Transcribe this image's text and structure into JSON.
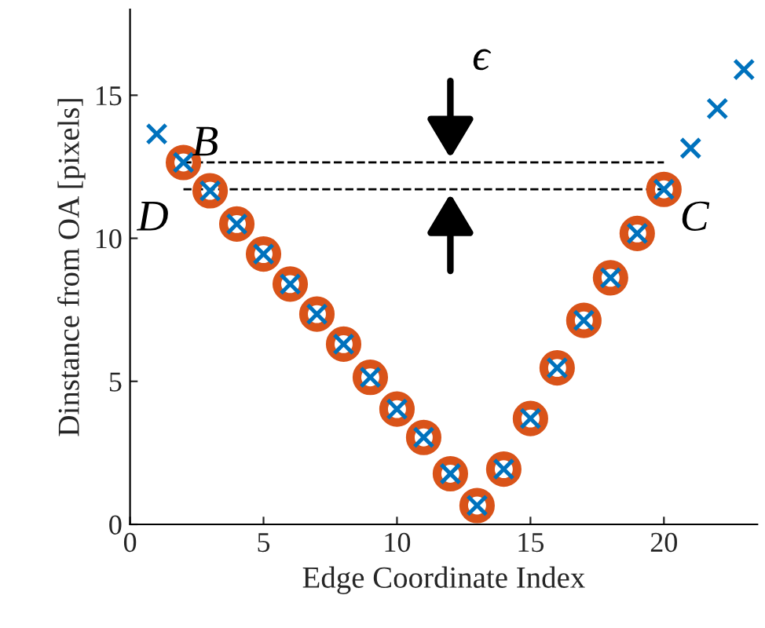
{
  "chart_data": {
    "type": "scatter",
    "xlabel": "Edge Coordinate Index",
    "ylabel": "Dinstance from OA [pixels]",
    "xlim": [
      0,
      23.5
    ],
    "ylim": [
      0,
      18
    ],
    "xticks": [
      0,
      5,
      10,
      15,
      20
    ],
    "yticks": [
      0,
      5,
      10,
      15
    ],
    "grid": false,
    "legend": false,
    "series": [
      {
        "color": "#d95319",
        "marker": "circle",
        "x": [
          2,
          3,
          4,
          5,
          6,
          7,
          8,
          9,
          10,
          11,
          12,
          13,
          14,
          15,
          16,
          17,
          18,
          19,
          20
        ],
        "values": [
          12.65,
          11.66,
          10.5,
          9.45,
          8.4,
          7.35,
          6.3,
          5.14,
          4.03,
          3.04,
          1.77,
          0.66,
          1.93,
          3.7,
          5.47,
          7.13,
          8.62,
          10.17,
          11.71
        ]
      },
      {
        "color": "#0072bd",
        "marker": "cross",
        "x": [
          1,
          2,
          3,
          4,
          5,
          6,
          7,
          8,
          9,
          10,
          11,
          12,
          13,
          14,
          15,
          16,
          17,
          18,
          19,
          20,
          21,
          22,
          23
        ],
        "values": [
          13.65,
          12.65,
          11.66,
          10.5,
          9.45,
          8.4,
          7.35,
          6.3,
          5.14,
          4.03,
          3.04,
          1.77,
          0.66,
          1.93,
          3.7,
          5.47,
          7.13,
          8.62,
          10.17,
          11.71,
          13.15,
          14.53,
          15.9
        ]
      }
    ],
    "ref_lines": [
      {
        "axis": "y",
        "value": 12.65,
        "line_style": "dashed",
        "color": "#000000"
      },
      {
        "axis": "y",
        "value": 11.71,
        "line_style": "dashed",
        "color": "#000000"
      }
    ],
    "annotations": [
      "B",
      "D",
      "C",
      "ϵ"
    ]
  }
}
